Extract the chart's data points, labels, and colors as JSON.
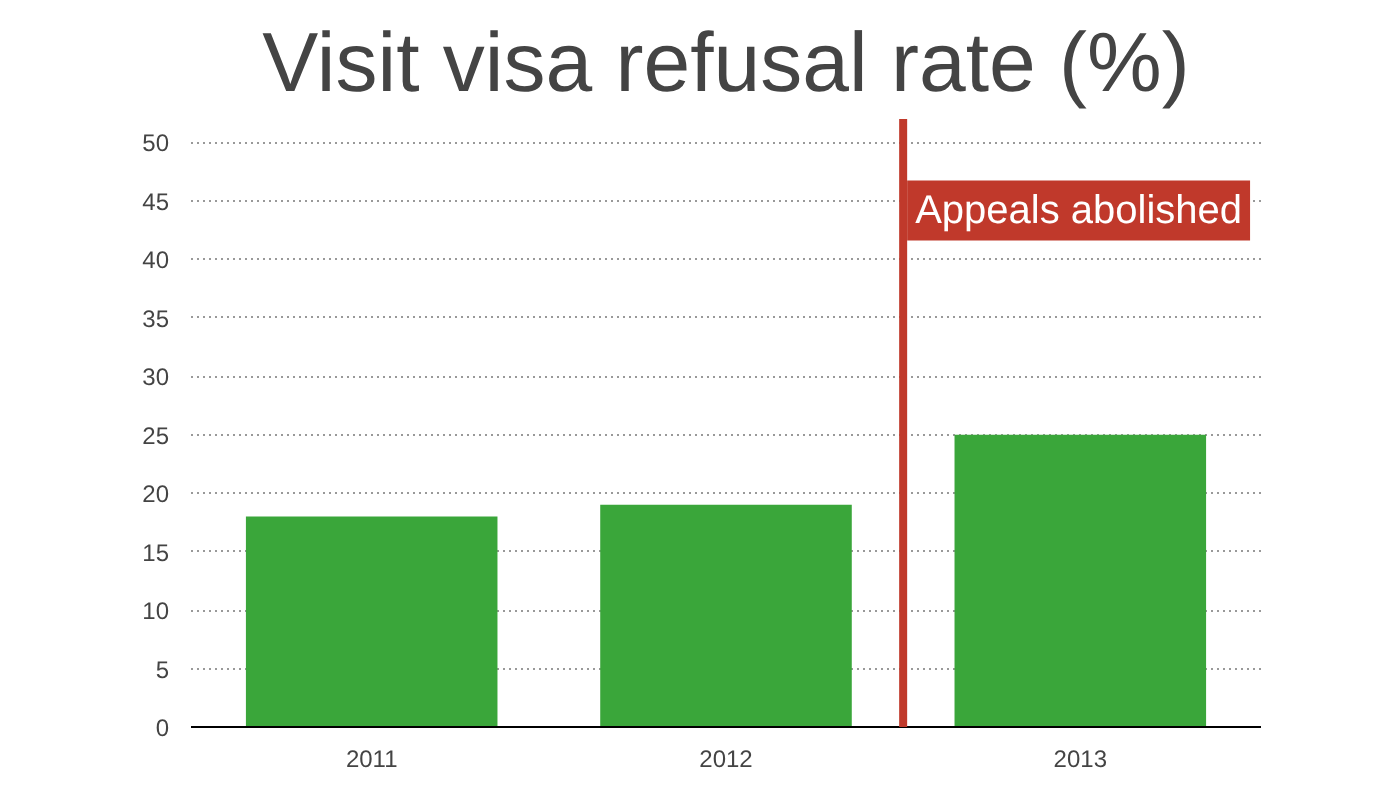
{
  "chart_data": {
    "type": "bar",
    "title": "Visit visa refusal rate (%)",
    "x": [
      2011,
      2012,
      2013
    ],
    "values": [
      18,
      19,
      25
    ],
    "color": "#3aa63a",
    "xlim": [
      2010.49,
      2013.51
    ],
    "xticks": [
      2011,
      2012,
      2013
    ],
    "ylim": [
      0,
      52
    ],
    "yticks": [
      0,
      5,
      10,
      15,
      20,
      25,
      30,
      35,
      40,
      45,
      50
    ],
    "grid": "y",
    "ref_lines": [
      {
        "axis": "x",
        "value": 2012.5,
        "label": "Appeals abolished",
        "color": "#c0392b"
      }
    ]
  }
}
